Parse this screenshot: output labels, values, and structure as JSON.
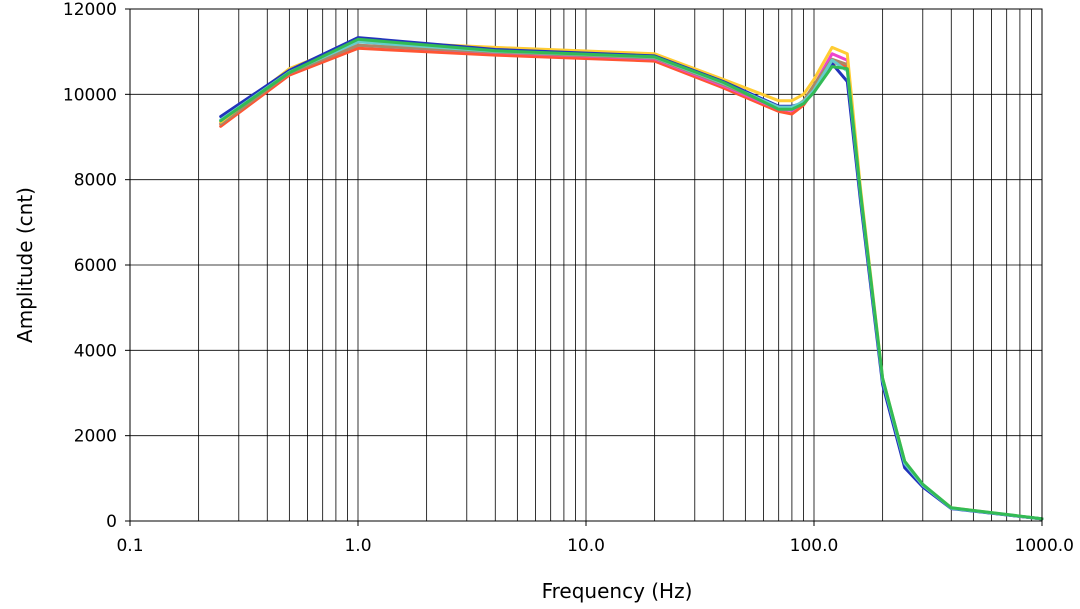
{
  "chart_data": {
    "type": "line",
    "title": "",
    "xlabel": "Frequency  (Hz)",
    "ylabel": "Amplitude  (cnt)",
    "xscale": "log",
    "xlim": [
      0.1,
      1000
    ],
    "ylim": [
      0,
      12000
    ],
    "xticks": [
      0.1,
      1,
      10,
      100,
      1000
    ],
    "xtick_labels": [
      "0.1",
      "1.0",
      "10.0",
      "100.0",
      "1000.0"
    ],
    "yticks": [
      0,
      2000,
      4000,
      6000,
      8000,
      10000,
      12000
    ],
    "ytick_labels": [
      "0",
      "2000",
      "4000",
      "6000",
      "8000",
      "10000",
      "12000"
    ],
    "grid": true,
    "legend": "none",
    "series": [
      {
        "color": "#ff5533",
        "x": [
          0.25,
          0.5,
          1,
          4,
          20,
          40,
          70,
          80,
          90,
          100,
          120,
          140,
          160,
          200,
          250,
          300,
          400,
          1000
        ],
        "y": [
          9250,
          10450,
          11080,
          10920,
          10780,
          10150,
          9600,
          9540,
          9750,
          10100,
          10750,
          10650,
          7600,
          3300,
          1300,
          820,
          300,
          50
        ]
      },
      {
        "color": "#ee44cc",
        "x": [
          0.25,
          0.5,
          1,
          4,
          20,
          40,
          70,
          80,
          90,
          100,
          120,
          140,
          160,
          200,
          250,
          300,
          400,
          1000
        ],
        "y": [
          9320,
          10500,
          11150,
          10980,
          10830,
          10200,
          9650,
          9620,
          9820,
          10200,
          10950,
          10800,
          7650,
          3300,
          1350,
          830,
          300,
          50
        ]
      },
      {
        "color": "#aa8866",
        "x": [
          0.25,
          0.5,
          1,
          4,
          20,
          40,
          70,
          80,
          90,
          100,
          120,
          140,
          160,
          200,
          250,
          300,
          400,
          1000
        ],
        "y": [
          9300,
          10500,
          11150,
          10990,
          10850,
          10230,
          9680,
          9660,
          9850,
          10220,
          10820,
          10700,
          7650,
          3300,
          1350,
          830,
          300,
          50
        ]
      },
      {
        "color": "#ffcc33",
        "x": [
          0.25,
          0.5,
          1,
          4,
          20,
          40,
          70,
          80,
          90,
          100,
          120,
          140,
          160,
          200,
          250,
          300,
          400,
          1000
        ],
        "y": [
          9350,
          10600,
          11250,
          11100,
          10950,
          10350,
          9850,
          9850,
          10000,
          10350,
          11100,
          10950,
          7800,
          3350,
          1400,
          850,
          310,
          50
        ]
      },
      {
        "color": "#2233bb",
        "x": [
          0.25,
          0.5,
          1,
          4,
          20,
          40,
          70,
          80,
          90,
          100,
          120,
          140,
          160,
          200,
          250,
          300,
          400,
          1000
        ],
        "y": [
          9480,
          10560,
          11330,
          11050,
          10900,
          10300,
          9720,
          9720,
          9800,
          10050,
          10720,
          10300,
          7500,
          3200,
          1250,
          800,
          290,
          50
        ]
      },
      {
        "color": "#66cccc",
        "x": [
          0.25,
          0.5,
          1,
          4,
          20,
          40,
          70,
          80,
          90,
          100,
          120,
          140,
          160,
          200,
          250,
          300,
          400,
          1000
        ],
        "y": [
          9400,
          10520,
          11230,
          11010,
          10870,
          10260,
          9700,
          9700,
          9830,
          10100,
          10800,
          10550,
          7650,
          3300,
          1350,
          840,
          300,
          50
        ]
      },
      {
        "color": "#33bb55",
        "x": [
          0.25,
          0.5,
          1,
          4,
          20,
          40,
          70,
          80,
          90,
          100,
          120,
          140,
          160,
          200,
          250,
          300,
          400,
          1000
        ],
        "y": [
          9380,
          10510,
          11290,
          11020,
          10880,
          10280,
          9650,
          9650,
          9780,
          10050,
          10650,
          10600,
          7700,
          3350,
          1400,
          860,
          310,
          55
        ]
      }
    ]
  }
}
